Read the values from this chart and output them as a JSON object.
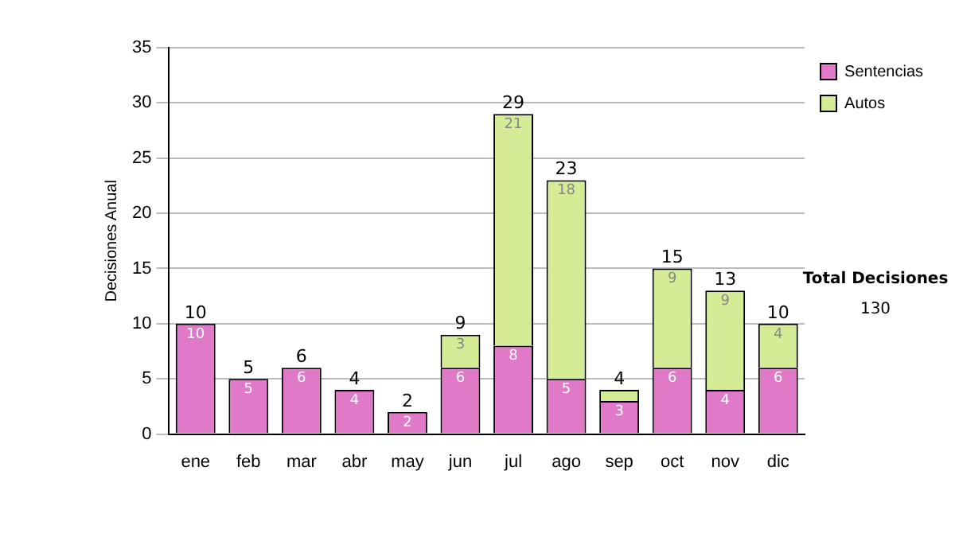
{
  "chart_data": {
    "type": "bar",
    "stacked": true,
    "ylabel": "Decisiones Anual",
    "categories": [
      "ene",
      "feb",
      "mar",
      "abr",
      "may",
      "jun",
      "jul",
      "ago",
      "sep",
      "oct",
      "nov",
      "dic"
    ],
    "series": [
      {
        "name": "Sentencias",
        "color": "#e07ac8",
        "values": [
          10,
          5,
          6,
          4,
          2,
          6,
          8,
          5,
          3,
          6,
          4,
          6
        ],
        "value_labels": [
          "10",
          "5",
          "6",
          "4",
          "2",
          "6",
          "8",
          "5",
          "3",
          "6",
          "4",
          "6"
        ]
      },
      {
        "name": "Autos",
        "color": "#d4ec96",
        "values": [
          0,
          0,
          0,
          0,
          0,
          3,
          21,
          18,
          1,
          9,
          9,
          4
        ],
        "value_labels": [
          null,
          null,
          null,
          null,
          null,
          "3",
          "21",
          "18",
          null,
          "9",
          "9",
          "4"
        ]
      }
    ],
    "totals": [
      "10",
      "5",
      "6",
      "4",
      "2",
      "9",
      "29",
      "23",
      "4",
      "15",
      "13",
      "10"
    ],
    "ylim": [
      0,
      35
    ],
    "yticks": [
      0,
      5,
      10,
      15,
      20,
      25,
      30,
      35
    ],
    "grid": "y",
    "legend": "right",
    "annotations": [
      "Total Decisiones",
      "130"
    ]
  }
}
